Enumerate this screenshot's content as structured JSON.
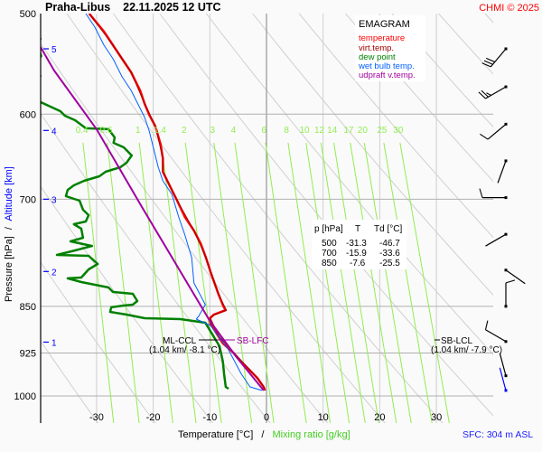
{
  "header": {
    "station_time": "Praha-Libus    22.11.2025 12 UTC",
    "copyright": "CHMI © 2025"
  },
  "colors": {
    "temperature": "#ff0000",
    "virt_temp": "#a00000",
    "dew_point": "#008000",
    "wet_bulb": "#0060ff",
    "updraft": "#a000a0",
    "mixing_ratio": "#90ee50",
    "isobar": "#b0b0b0",
    "adiabat": "#d0d0d0",
    "altitude": "#0000ff"
  },
  "chart_data": {
    "type": "line",
    "diagram": "emagram",
    "y_scale": "log",
    "ylim": [
      1050,
      500
    ],
    "xlim": [
      -40,
      40
    ],
    "ylabel_pressure": "Pressure [hPa]",
    "ylabel_sep": "/",
    "ylabel_altitude": "Altitude [km]",
    "xlabel_temperature": "Temperature [°C]",
    "xlabel_sep": "/",
    "xlabel_mixing": "Mixing ratio [g/kg]",
    "pressure_ticks": [
      500,
      600,
      700,
      850,
      925,
      1000
    ],
    "temperature_ticks": [
      -30,
      -20,
      -10,
      0,
      10,
      20,
      30
    ],
    "altitude_ticks": [
      {
        "km": "5",
        "p": 533
      },
      {
        "km": "4",
        "p": 618
      },
      {
        "km": "3",
        "p": 700
      },
      {
        "km": "2",
        "p": 798
      },
      {
        "km": "1",
        "p": 907
      }
    ],
    "mixing_ratio_labels": [
      "0.4",
      "0.6",
      "1",
      "1.4",
      "2",
      "3",
      "4",
      "6",
      "8",
      "10",
      "12",
      "14",
      "17",
      "20",
      "25",
      "30"
    ],
    "legend": {
      "title": "EMAGRAM",
      "items": [
        {
          "label": "temperature",
          "color": "#ff0000"
        },
        {
          "label": "virt.temp.",
          "color": "#a00000"
        },
        {
          "label": "dew point",
          "color": "#008000"
        },
        {
          "label": "wet bulb temp.",
          "color": "#0060ff"
        },
        {
          "label": "udpraft v.temp.",
          "color": "#a000a0"
        }
      ]
    },
    "table": {
      "headers": [
        "p [hPa]",
        "T",
        "Td [°C]"
      ],
      "rows": [
        [
          "500",
          "-31.3",
          "-46.7"
        ],
        [
          "700",
          "-15.9",
          "-33.6"
        ],
        [
          "850",
          "-7.6",
          "-25.5"
        ]
      ]
    },
    "series": [
      {
        "name": "temperature",
        "color": "#ff0000",
        "points": [
          [
            500,
            -31.3
          ],
          [
            516.6,
            -28.7
          ],
          [
            529.5,
            -27.1
          ],
          [
            542.7,
            -25.5
          ],
          [
            556,
            -23.9
          ],
          [
            575,
            -22.3
          ],
          [
            589,
            -21.5
          ],
          [
            600.6,
            -20.7
          ],
          [
            613.7,
            -19.6
          ],
          [
            634,
            -18.7
          ],
          [
            650,
            -18.3
          ],
          [
            666,
            -18.3
          ],
          [
            683,
            -17.1
          ],
          [
            700,
            -15.9
          ],
          [
            723,
            -14.4
          ],
          [
            741,
            -12.8
          ],
          [
            759,
            -11.6
          ],
          [
            778,
            -10.7
          ],
          [
            798,
            -9.9
          ],
          [
            831,
            -8.5
          ],
          [
            850,
            -7.6
          ],
          [
            856,
            -7.2
          ],
          [
            863,
            -9.3
          ],
          [
            868.5,
            -10.0
          ],
          [
            877,
            -9.9
          ],
          [
            897.5,
            -8.5
          ],
          [
            909,
            -7.7
          ],
          [
            924,
            -5.9
          ],
          [
            939.5,
            -4.5
          ],
          [
            955,
            -2.9
          ],
          [
            968,
            -1.6
          ],
          [
            984,
            -0.5
          ],
          [
            990,
            -0.3
          ]
        ]
      },
      {
        "name": "virt.temp.",
        "color": "#a00000",
        "points": [
          [
            500,
            -31.3
          ],
          [
            529.5,
            -27.1
          ],
          [
            556,
            -23.9
          ],
          [
            589,
            -21.5
          ],
          [
            613.7,
            -19.6
          ],
          [
            650,
            -18.3
          ],
          [
            666,
            -18.3
          ],
          [
            700,
            -15.9
          ],
          [
            741,
            -12.8
          ],
          [
            778,
            -10.7
          ],
          [
            831,
            -8.5
          ],
          [
            856,
            -7.1
          ],
          [
            863,
            -9.2
          ],
          [
            868.5,
            -9.9
          ],
          [
            897.5,
            -8.4
          ],
          [
            924,
            -5.8
          ],
          [
            955,
            -2.8
          ],
          [
            984,
            -0.4
          ],
          [
            990,
            -0.2
          ]
        ]
      },
      {
        "name": "dew point",
        "color": "#008000",
        "points": [
          [
            500,
            -46.7
          ],
          [
            520,
            -41
          ],
          [
            523.3,
            -39.9
          ],
          [
            530,
            -40.3
          ],
          [
            540,
            -39.8
          ],
          [
            550,
            -41
          ],
          [
            560,
            -39.9
          ],
          [
            570,
            -42
          ],
          [
            587,
            -39.9
          ],
          [
            596.8,
            -36.4
          ],
          [
            601.7,
            -35.6
          ],
          [
            606.7,
            -33.8
          ],
          [
            615.6,
            -31.9
          ],
          [
            616,
            -30.3
          ],
          [
            616.6,
            -27.9
          ],
          [
            625.9,
            -26.8
          ],
          [
            632,
            -27.0
          ],
          [
            637.2,
            -25.2
          ],
          [
            646.7,
            -23.8
          ],
          [
            655.2,
            -24.7
          ],
          [
            660.6,
            -25.8
          ],
          [
            666,
            -28.4
          ],
          [
            671.5,
            -29.5
          ],
          [
            677,
            -32.2
          ],
          [
            682.6,
            -34.0
          ],
          [
            688.3,
            -35.1
          ],
          [
            696.2,
            -35.4
          ],
          [
            701.9,
            -33.0
          ],
          [
            713.5,
            -32.4
          ],
          [
            720.5,
            -31.4
          ],
          [
            728.8,
            -31.9
          ],
          [
            732.4,
            -34.0
          ],
          [
            738.5,
            -32.7
          ],
          [
            750.7,
            -32.4
          ],
          [
            755.6,
            -34.6
          ],
          [
            761.9,
            -30.8
          ],
          [
            768.1,
            -33.8
          ],
          [
            774.4,
            -37.0
          ],
          [
            775.7,
            -31.4
          ],
          [
            787.2,
            -29.8
          ],
          [
            795,
            -31.4
          ],
          [
            806.8,
            -32.7
          ],
          [
            808,
            -35.1
          ],
          [
            813.4,
            -32.7
          ],
          [
            821.5,
            -27.9
          ],
          [
            828.2,
            -27.1
          ],
          [
            830.9,
            -23.6
          ],
          [
            841.9,
            -22.8
          ],
          [
            847.4,
            -23.6
          ],
          [
            848.8,
            -25.2
          ],
          [
            851.5,
            -27.4
          ],
          [
            858.6,
            -27.6
          ],
          [
            862.8,
            -24.7
          ],
          [
            868.5,
            -21.5
          ],
          [
            870,
            -15.2
          ],
          [
            875.7,
            -10.8
          ],
          [
            913.8,
            -8.3
          ],
          [
            939.5,
            -7.7
          ],
          [
            959.9,
            -7.5
          ],
          [
            983.7,
            -7.2
          ],
          [
            986.9,
            -6.7
          ]
        ]
      },
      {
        "name": "wet bulb temp.",
        "color": "#0060ff",
        "points": [
          [
            500,
            -31.9
          ],
          [
            512.4,
            -30.3
          ],
          [
            529.5,
            -28.7
          ],
          [
            542.7,
            -27.1
          ],
          [
            560.7,
            -25.5
          ],
          [
            574.7,
            -23.9
          ],
          [
            593.9,
            -22.3
          ],
          [
            603.7,
            -21.5
          ],
          [
            618.7,
            -20.7
          ],
          [
            639.3,
            -19.9
          ],
          [
            660.6,
            -19.1
          ],
          [
            677,
            -18.3
          ],
          [
            693.9,
            -16.7
          ],
          [
            722.9,
            -15.5
          ],
          [
            747,
            -14.4
          ],
          [
            778.2,
            -13.2
          ],
          [
            814.8,
            -12.8
          ],
          [
            847.4,
            -10.8
          ],
          [
            865.7,
            -12.0
          ],
          [
            870,
            -12.4
          ],
          [
            880,
            -9.9
          ],
          [
            919.8,
            -6.7
          ],
          [
            959.9,
            -4.5
          ],
          [
            983.7,
            -2.9
          ],
          [
            990,
            -0.8
          ]
        ]
      },
      {
        "name": "udpraft v.temp.",
        "color": "#a000a0",
        "points": [
          [
            531.2,
            -39.9
          ],
          [
            554.4,
            -37.5
          ],
          [
            616.6,
            -30.0
          ],
          [
            711.2,
            -21.9
          ],
          [
            872.8,
            -10.0
          ],
          [
            931.9,
            -5.3
          ],
          [
            990,
            -0.5
          ]
        ]
      }
    ],
    "annotations": [
      {
        "label": "ML-CCL",
        "detail": "(1.04 km/ -8.1 °C)",
        "p": 882
      },
      {
        "label": "SB-LFC",
        "p": 882
      },
      {
        "label": "SB-LCL",
        "detail": "(1.04 km/ -7.9 °C)",
        "p": 882
      }
    ],
    "wind_barbs": [
      {
        "p": 533,
        "dir": 220,
        "kt": 30
      },
      {
        "p": 571,
        "dir": 240,
        "kt": 25
      },
      {
        "p": 611,
        "dir": 230,
        "kt": 10
      },
      {
        "p": 653,
        "dir": 200,
        "kt": 0
      },
      {
        "p": 698,
        "dir": 270,
        "kt": 10
      },
      {
        "p": 746,
        "dir": 240,
        "kt": 0
      },
      {
        "p": 796,
        "dir": 125,
        "kt": 0
      },
      {
        "p": 850,
        "dir": 0,
        "kt": 10
      },
      {
        "p": 906,
        "dir": 300,
        "kt": 10
      },
      {
        "p": 964,
        "dir": 345,
        "kt": 0
      },
      {
        "p": 990,
        "dir": 345,
        "kt": 0,
        "surface": true
      }
    ],
    "surface": "SFC: 304 m ASL"
  }
}
